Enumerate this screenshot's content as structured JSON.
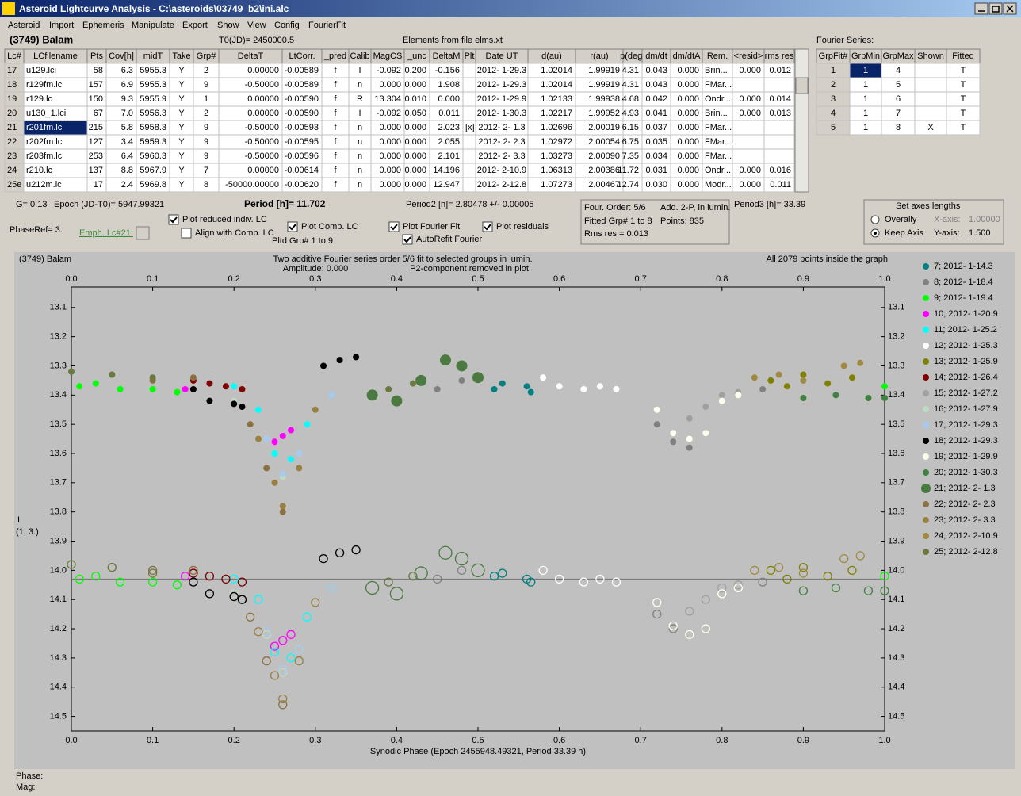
{
  "window": {
    "title": "Asteroid Lightcurve Analysis - C:\\asteroids\\03749_b2\\ini.alc",
    "menu": [
      "Asteroid",
      "Import",
      "Ephemeris",
      "Manipulate",
      "Export",
      "Show",
      "View",
      "Config",
      "FourierFit"
    ]
  },
  "header": {
    "object": "(3749) Balam",
    "t0": "T0(JD)= 2450000.5",
    "elements": "Elements from file elms.xt",
    "fourier_label": "Fourier Series:"
  },
  "table": {
    "columns": [
      "Lc#",
      "LCfilename",
      "Pts",
      "Cov[h]",
      "midT",
      "Take",
      "Grp#",
      "DeltaT",
      "LtCorr.",
      "_pred",
      "Calib",
      "MagCS",
      "_unc",
      "DeltaM",
      "Plt",
      "Date UT",
      "d(au)",
      "r(au)",
      "p(deg)",
      "dm/dt",
      "dm/dtA",
      "Rem.",
      "<resid>",
      "rms res"
    ],
    "selected_row": 4,
    "rows": [
      [
        "17",
        "u129.lci",
        "58",
        "6.3",
        "5955.3",
        "Y",
        "2",
        "0.00000",
        "-0.00589",
        "f",
        "I",
        "-0.092",
        "0.200",
        "-0.156",
        null,
        "2012- 1-29.3",
        "1.02014",
        "1.99919",
        "4.31",
        "0.043",
        "0.000",
        "Brin...",
        "0.000",
        "0.012"
      ],
      [
        "18",
        "r129fm.lc",
        "157",
        "6.9",
        "5955.3",
        "Y",
        "9",
        "-0.50000",
        "-0.00589",
        "f",
        "n",
        "0.000",
        "0.000",
        "1.908",
        null,
        "2012- 1-29.3",
        "1.02014",
        "1.99919",
        "4.31",
        "0.043",
        "0.000",
        "FMar...",
        null,
        null
      ],
      [
        "19",
        "r129.lc",
        "150",
        "9.3",
        "5955.9",
        "Y",
        "1",
        "0.00000",
        "-0.00590",
        "f",
        "R",
        "13.304",
        "0.010",
        "0.000",
        null,
        "2012- 1-29.9",
        "1.02133",
        "1.99938",
        "4.68",
        "0.042",
        "0.000",
        "Ondr...",
        "0.000",
        "0.014"
      ],
      [
        "20",
        "u130_1.lci",
        "67",
        "7.0",
        "5956.3",
        "Y",
        "2",
        "0.00000",
        "-0.00590",
        "f",
        "I",
        "-0.092",
        "0.050",
        "0.011",
        null,
        "2012- 1-30.3",
        "1.02217",
        "1.99952",
        "4.93",
        "0.041",
        "0.000",
        "Brin...",
        "0.000",
        "0.013"
      ],
      [
        "21",
        "r201fm.lc",
        "215",
        "5.8",
        "5958.3",
        "Y",
        "9",
        "-0.50000",
        "-0.00593",
        "f",
        "n",
        "0.000",
        "0.000",
        "2.023",
        "[x]",
        "2012- 2- 1.3",
        "1.02696",
        "2.00019",
        "6.15",
        "0.037",
        "0.000",
        "FMar...",
        null,
        null
      ],
      [
        "22",
        "r202fm.lc",
        "127",
        "3.4",
        "5959.3",
        "Y",
        "9",
        "-0.50000",
        "-0.00595",
        "f",
        "n",
        "0.000",
        "0.000",
        "2.055",
        null,
        "2012- 2- 2.3",
        "1.02972",
        "2.00054",
        "6.75",
        "0.035",
        "0.000",
        "FMar...",
        null,
        null
      ],
      [
        "23",
        "r203fm.lc",
        "253",
        "6.4",
        "5960.3",
        "Y",
        "9",
        "-0.50000",
        "-0.00596",
        "f",
        "n",
        "0.000",
        "0.000",
        "2.101",
        null,
        "2012- 2- 3.3",
        "1.03273",
        "2.00090",
        "7.35",
        "0.034",
        "0.000",
        "FMar...",
        null,
        null
      ],
      [
        "24",
        "r210.lc",
        "137",
        "8.8",
        "5967.9",
        "Y",
        "7",
        "0.00000",
        "-0.00614",
        "f",
        "n",
        "0.000",
        "0.000",
        "14.196",
        null,
        "2012- 2-10.9",
        "1.06313",
        "2.00386",
        "11.72",
        "0.031",
        "0.000",
        "Ondr...",
        "0.000",
        "0.016"
      ],
      [
        "25e",
        "u212m.lc",
        "17",
        "2.4",
        "5969.8",
        "Y",
        "8",
        "-50000.00000",
        "-0.00620",
        "f",
        "n",
        "0.000",
        "0.000",
        "12.947",
        null,
        "2012- 2-12.8",
        "1.07273",
        "2.00467",
        "12.74",
        "0.030",
        "0.000",
        "Modr...",
        "0.000",
        "0.011"
      ]
    ]
  },
  "fourier_table": {
    "columns": [
      "GrpFit#",
      "GrpMin",
      "GrpMax",
      "Shown",
      "Fitted"
    ],
    "rows": [
      [
        "1",
        "1",
        "4",
        null,
        "T"
      ],
      [
        "2",
        "1",
        "5",
        null,
        "T"
      ],
      [
        "3",
        "1",
        "6",
        null,
        "T"
      ],
      [
        "4",
        "1",
        "7",
        null,
        "T"
      ],
      [
        "5",
        "1",
        "8",
        "X",
        "T"
      ]
    ]
  },
  "info": {
    "g": "G= 0.13",
    "epoch": "Epoch (JD-T0)= 5947.99321",
    "period": "Period [h]= 11.702",
    "period2": "Period2 [h]= 2.80478 +/- 0.00005",
    "period3": "Period3 [h]= 33.39",
    "four_order": "Four. Order:  5/6",
    "add": "Add. 2-P, in lumin.",
    "fitted": "Fitted Grp# 1 to 8",
    "points": "Points: 835",
    "rms": "Rms res     = 0.013",
    "phase_ref": "PhaseRef= 3.",
    "emph": "Emph. Lc#21:",
    "pltd": "Pltd Grp#  1   to   9",
    "axes_title": "Set axes lengths",
    "radios": [
      {
        "label": "Overally",
        "selected": false
      },
      {
        "label": "Keep Axis",
        "selected": true
      }
    ],
    "x_axis_label": "X-axis:",
    "x_axis_value": "1.00000",
    "y_axis_label": "Y-axis:",
    "y_axis_value": "1.500",
    "checkboxes": [
      {
        "label": "Plot reduced indiv. LC",
        "checked": true
      },
      {
        "label": "Align with Comp. LC",
        "checked": false
      },
      {
        "label": "Plot Comp. LC",
        "checked": true
      },
      {
        "label": "Plot Fourier Fit",
        "checked": true
      },
      {
        "label": "AutoRefit Fourier",
        "checked": true
      },
      {
        "label": "Plot residuals",
        "checked": true
      }
    ]
  },
  "chart_data": {
    "type": "scatter",
    "title": "Two additive Fourier series order 5/6 fit to selected groups in lumin.",
    "object": "(3749) Balam",
    "subtitle": "Amplitude: 0.000",
    "note": "P2-component removed in plot",
    "count_note": "All 2079 points inside the graph",
    "xlabel": "Synodic Phase (Epoch 2455948.49321, Period 33.39 h)",
    "ylabel": "I",
    "ylabel2": "(1, 3.)",
    "xlim": [
      0,
      1
    ],
    "ylim": [
      14.55,
      13.03
    ],
    "residual_line": 14.03,
    "xticks": [
      {
        "value": 0,
        "label": "0.0"
      },
      {
        "value": 0.1,
        "label": "0.1"
      },
      {
        "value": 0.2,
        "label": "0.2"
      },
      {
        "value": 0.3,
        "label": "0.3"
      },
      {
        "value": 0.4,
        "label": "0.4"
      },
      {
        "value": 0.5,
        "label": "0.5"
      },
      {
        "value": 0.6,
        "label": "0.6"
      },
      {
        "value": 0.7,
        "label": "0.7"
      },
      {
        "value": 0.8,
        "label": "0.8"
      },
      {
        "value": 0.9,
        "label": "0.9"
      },
      {
        "value": 1,
        "label": "1.0"
      }
    ],
    "yticks": [
      13.1,
      13.2,
      13.3,
      13.4,
      13.5,
      13.6,
      13.7,
      13.8,
      13.9,
      {
        "value": 14,
        "label": "14.0"
      },
      14.1,
      14.2,
      14.3,
      14.4,
      14.5
    ],
    "series": [
      {
        "name": "7; 2012- 1-14.3",
        "color": "#008080",
        "x": [
          0.52,
          0.53,
          0.56,
          0.565
        ],
        "values": [
          13.38,
          13.36,
          13.37,
          13.39
        ],
        "lower": [
          14.02,
          14.01,
          14.03,
          14.04
        ]
      },
      {
        "name": "8; 2012- 1-18.4",
        "color": "#808080",
        "x": [
          0.45,
          0.48,
          0.72,
          0.74,
          0.76,
          0.85
        ],
        "values": [
          13.38,
          13.35,
          13.5,
          13.56,
          13.58,
          13.38
        ],
        "lower": [
          14.03,
          14.0,
          14.15,
          14.2,
          14.22,
          14.04
        ]
      },
      {
        "name": "9; 2012- 1-19.4",
        "color": "#00ff00",
        "x": [
          0.01,
          0.03,
          0.06,
          0.1,
          0.13,
          1.0
        ],
        "values": [
          13.37,
          13.36,
          13.38,
          13.38,
          13.39,
          13.37
        ],
        "lower": [
          14.03,
          14.02,
          14.04,
          14.04,
          14.05,
          14.02
        ]
      },
      {
        "name": "10; 2012- 1-20.9",
        "color": "#ff00ff",
        "x": [
          0.14,
          0.25,
          0.26,
          0.27
        ],
        "values": [
          13.38,
          13.56,
          13.54,
          13.52
        ],
        "lower": [
          14.02,
          14.26,
          14.24,
          14.22
        ]
      },
      {
        "name": "11; 2012- 1-25.2",
        "color": "#00ffff",
        "x": [
          0.2,
          0.23,
          0.25,
          0.27,
          0.29,
          0.32
        ],
        "values": [
          13.37,
          13.45,
          13.6,
          13.62,
          13.5,
          13.4
        ],
        "lower": [
          14.03,
          14.1,
          14.28,
          14.3,
          14.16,
          14.06
        ]
      },
      {
        "name": "12; 2012- 1-25.3",
        "color": "#ffffff",
        "x": [
          0.58,
          0.6,
          0.63,
          0.65,
          0.67
        ],
        "values": [
          13.34,
          13.37,
          13.38,
          13.37,
          13.38
        ],
        "lower": [
          14.0,
          14.03,
          14.04,
          14.03,
          14.04
        ]
      },
      {
        "name": "13; 2012- 1-25.9",
        "color": "#808000",
        "x": [
          0.86,
          0.88,
          0.9,
          0.93,
          0.96
        ],
        "values": [
          13.35,
          13.37,
          13.33,
          13.36,
          13.34
        ],
        "lower": [
          14.0,
          14.03,
          13.99,
          14.02,
          14.0
        ]
      },
      {
        "name": "14; 2012- 1-26.4",
        "color": "#800000",
        "x": [
          0.15,
          0.17,
          0.19,
          0.21
        ],
        "values": [
          13.35,
          13.36,
          13.37,
          13.38
        ],
        "lower": [
          14.01,
          14.02,
          14.03,
          14.04
        ]
      },
      {
        "name": "15; 2012- 1-27.2",
        "color": "#a0a0a0",
        "x": [
          0.76,
          0.78,
          0.8,
          0.82
        ],
        "values": [
          13.48,
          13.44,
          13.4,
          13.39
        ],
        "lower": [
          14.14,
          14.1,
          14.06,
          14.05
        ]
      },
      {
        "name": "16; 2012- 1-27.9",
        "color": "#c0dcc0",
        "x": [
          0.2,
          0.24,
          0.26,
          0.28
        ],
        "values": [
          13.42,
          13.55,
          13.68,
          13.6
        ],
        "lower": [
          14.08,
          14.22,
          14.35,
          14.27
        ]
      },
      {
        "name": "17; 2012- 1-29.3",
        "color": "#a6caf0",
        "x": [
          0.24,
          0.26,
          0.28,
          0.3,
          0.32
        ],
        "values": [
          13.55,
          13.67,
          13.6,
          13.45,
          13.4
        ],
        "lower": [
          14.21,
          14.34,
          14.27,
          14.11,
          14.06
        ]
      },
      {
        "name": "18; 2012- 1-29.3",
        "color": "#000000",
        "x": [
          0.15,
          0.17,
          0.2,
          0.21,
          0.31,
          0.33,
          0.35
        ],
        "values": [
          13.38,
          13.42,
          13.43,
          13.44,
          13.3,
          13.28,
          13.27
        ],
        "lower": [
          14.04,
          14.08,
          14.09,
          14.1,
          13.96,
          13.94,
          13.93
        ]
      },
      {
        "name": "19; 2012- 1-29.9",
        "color": "#fffff0",
        "x": [
          0.72,
          0.74,
          0.76,
          0.78,
          0.8,
          0.82
        ],
        "values": [
          13.45,
          13.53,
          13.55,
          13.53,
          13.42,
          13.4
        ],
        "lower": [
          14.11,
          14.19,
          14.22,
          14.2,
          14.08,
          14.06
        ]
      },
      {
        "name": "20; 2012- 1-30.3",
        "color": "#408040",
        "x": [
          0.9,
          0.94,
          0.98,
          1.0
        ],
        "values": [
          13.41,
          13.4,
          13.41,
          13.41
        ],
        "lower": [
          14.07,
          14.06,
          14.07,
          14.07
        ]
      },
      {
        "name": "21; 2012- 2- 1.3",
        "color": "#4a7a40",
        "large": true,
        "x": [
          0.37,
          0.4,
          0.43,
          0.46,
          0.48,
          0.5
        ],
        "values": [
          13.4,
          13.42,
          13.35,
          13.28,
          13.3,
          13.34
        ],
        "lower": [
          14.06,
          14.08,
          14.01,
          13.94,
          13.96,
          14.0
        ]
      },
      {
        "name": "22; 2012- 2- 2.3",
        "color": "#8b7040",
        "x": [
          0.05,
          0.1,
          0.15,
          0.22,
          0.24,
          0.26
        ],
        "values": [
          13.33,
          13.35,
          13.34,
          13.5,
          13.65,
          13.8
        ],
        "lower": [
          13.99,
          14.01,
          14.0,
          14.16,
          14.31,
          14.46
        ]
      },
      {
        "name": "23; 2012- 2- 3.3",
        "color": "#9a8040",
        "x": [
          0.23,
          0.25,
          0.26,
          0.28,
          0.3
        ],
        "values": [
          13.55,
          13.7,
          13.78,
          13.65,
          13.45
        ],
        "lower": [
          14.21,
          14.36,
          14.44,
          14.31,
          14.11
        ]
      },
      {
        "name": "24; 2012- 2-10.9",
        "color": "#a08a40",
        "x": [
          0.84,
          0.87,
          0.9,
          0.95,
          0.97
        ],
        "values": [
          13.34,
          13.33,
          13.35,
          13.3,
          13.29
        ],
        "lower": [
          14.0,
          13.99,
          14.01,
          13.96,
          13.95
        ]
      },
      {
        "name": "25; 2012- 2-12.8",
        "color": "#6a7a40",
        "x": [
          0.0,
          0.05,
          0.1,
          0.39,
          0.42
        ],
        "values": [
          13.32,
          13.33,
          13.34,
          13.38,
          13.36
        ],
        "lower": [
          13.98,
          13.99,
          14.0,
          14.04,
          14.02
        ]
      }
    ]
  },
  "status": {
    "phase": "Phase:",
    "mag": "Mag:"
  }
}
